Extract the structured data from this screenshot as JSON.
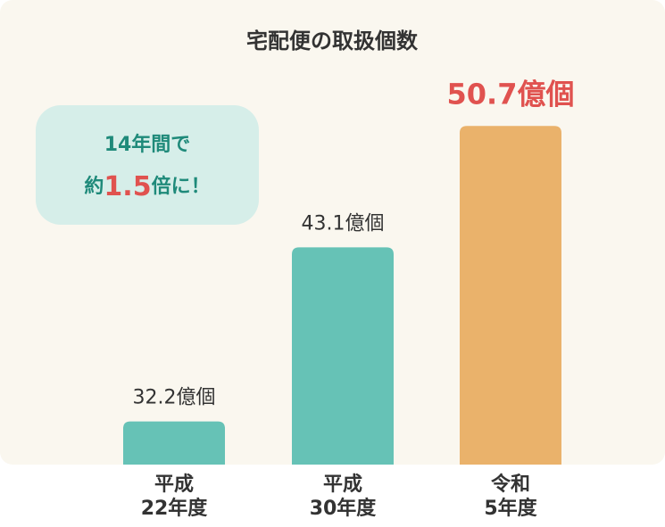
{
  "chart_data": {
    "type": "bar",
    "title": "宅配便の取扱個数",
    "categories": [
      "平成\n22年度",
      "平成\n30年度",
      "令和\n5年度"
    ],
    "values": [
      32.2,
      43.1,
      50.7
    ],
    "value_labels": [
      "32.2億個",
      "43.1億個",
      "50.7億個"
    ],
    "colors": [
      "#66c2b6",
      "#66c2b6",
      "#eab26b"
    ],
    "label_colors": [
      "#333333",
      "#333333",
      "#e0524f"
    ],
    "label_emphasis": [
      false,
      false,
      true
    ],
    "ylim": [
      29.5,
      52
    ],
    "callout": {
      "line1": "14年間で",
      "line2_pre": "約",
      "line2_num": "1.5",
      "line2_post": "倍に！"
    }
  }
}
